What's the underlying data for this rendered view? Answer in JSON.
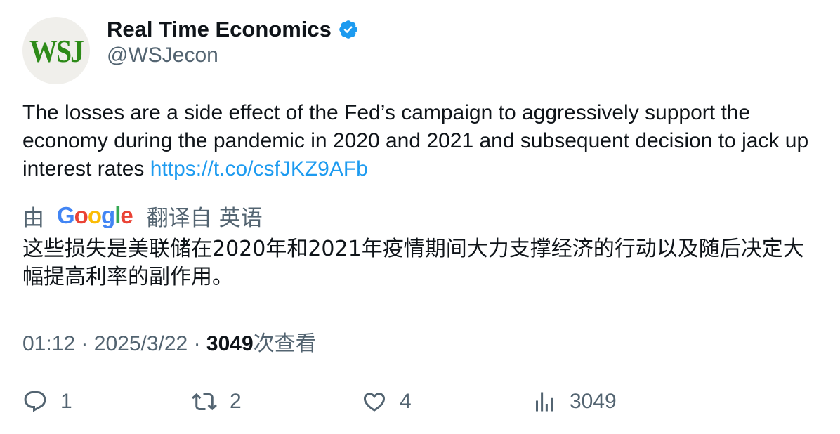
{
  "author": {
    "avatar_text": "WSJ",
    "display_name": "Real Time Economics",
    "handle": "@WSJecon",
    "verified": true,
    "verified_color": "#1d9bf0"
  },
  "tweet": {
    "text": "The losses are a side effect of the Fed’s campaign to aggressively support the economy during the pandemic in 2020 and 2021 and subsequent decision to jack up interest rates ",
    "link": "https://t.co/csfJKZ9AFb",
    "link_color": "#1d9bf0"
  },
  "translation": {
    "prefix": "由",
    "provider": "Google",
    "suffix": "翻译自 英语",
    "text": "这些损失是美联储在2020年和2021年疫情期间大力支撑经济的行动以及随后决定大幅提高利率的副作用。"
  },
  "meta": {
    "time": "01:12",
    "separator": "·",
    "date": "2025/3/22",
    "views_count": "3049",
    "views_label": "次查看"
  },
  "actions": {
    "reply": {
      "icon": "reply-icon",
      "count": "1"
    },
    "retweet": {
      "icon": "retweet-icon",
      "count": "2"
    },
    "like": {
      "icon": "heart-icon",
      "count": "4"
    },
    "views": {
      "icon": "views-chart-icon",
      "count": "3049"
    }
  },
  "colors": {
    "text_primary": "#0f1419",
    "text_secondary": "#536471",
    "brand_green": "#2d8a18"
  }
}
